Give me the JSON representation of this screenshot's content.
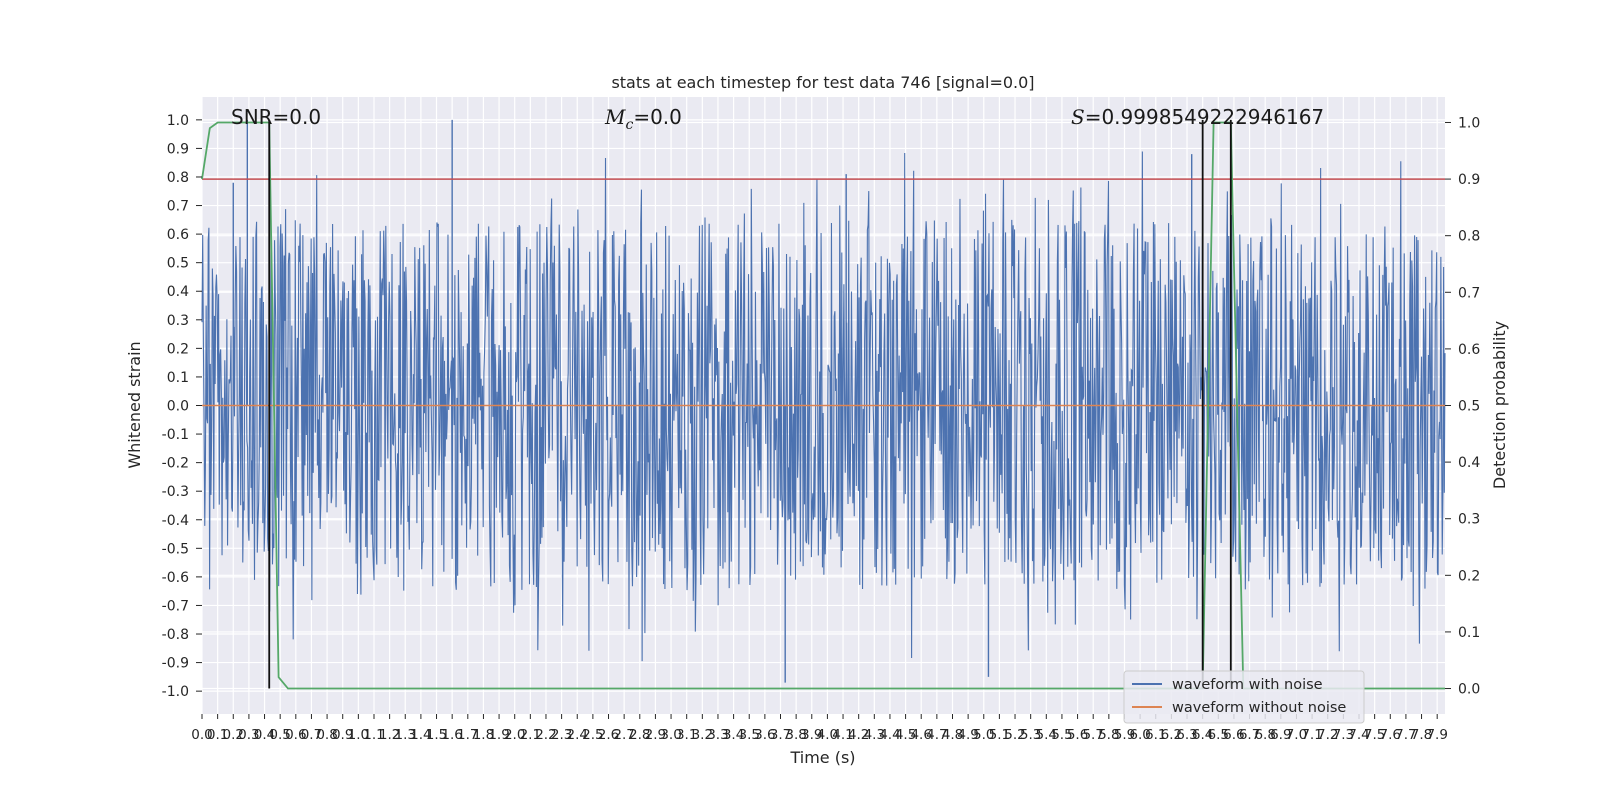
{
  "chart_data": {
    "type": "line",
    "title": "stats at each timestep for test data 746 [signal=0.0]",
    "xlabel": "Time (s)",
    "ylabel": "Whitened strain",
    "y2label": "Detection probability",
    "xlim": [
      0.0,
      7.95
    ],
    "ylim": [
      -1.08,
      1.08
    ],
    "y2lim": [
      -0.045,
      1.045
    ],
    "x_ticks": [
      "0.0",
      "0.1",
      "0.2",
      "0.3",
      "0.4",
      "0.5",
      "0.6",
      "0.7",
      "0.8",
      "0.9",
      "1.0",
      "1.1",
      "1.2",
      "1.3",
      "1.4",
      "1.5",
      "1.6",
      "1.7",
      "1.8",
      "1.9",
      "2.0",
      "2.1",
      "2.2",
      "2.3",
      "2.4",
      "2.5",
      "2.6",
      "2.7",
      "2.8",
      "2.9",
      "3.0",
      "3.1",
      "3.2",
      "3.3",
      "3.4",
      "3.5",
      "3.6",
      "3.7",
      "3.8",
      "3.9",
      "4.0",
      "4.1",
      "4.2",
      "4.3",
      "4.4",
      "4.5",
      "4.6",
      "4.7",
      "4.8",
      "4.9",
      "5.0",
      "5.1",
      "5.2",
      "5.3",
      "5.4",
      "5.5",
      "5.6",
      "5.7",
      "5.8",
      "5.9",
      "6.0",
      "6.1",
      "6.2",
      "6.3",
      "6.4",
      "6.5",
      "6.6",
      "6.7",
      "6.8",
      "6.9",
      "7.0",
      "7.1",
      "7.2",
      "7.3",
      "7.4",
      "7.5",
      "7.6",
      "7.7",
      "7.8",
      "7.9"
    ],
    "y_ticks": [
      "1.0",
      "0.9",
      "0.8",
      "0.7",
      "0.6",
      "0.5",
      "0.4",
      "0.3",
      "0.2",
      "0.1",
      "0.0",
      "-0.1",
      "-0.2",
      "-0.3",
      "-0.4",
      "-0.5",
      "-0.6",
      "-0.7",
      "-0.8",
      "-0.9",
      "-1.0"
    ],
    "y2_ticks": [
      "1.0",
      "0.9",
      "0.8",
      "0.7",
      "0.6",
      "0.5",
      "0.4",
      "0.3",
      "0.2",
      "0.1",
      "0.0"
    ],
    "annotations": {
      "snr": "SNR=0.0",
      "mc_symbol": "M",
      "mc_sub": "c",
      "mc_value": "=0.0",
      "s_symbol": "S",
      "s_value": "=0.9998549222946167"
    },
    "threshold_y2": 0.9,
    "vertical_lines_x": [
      0.43,
      6.4,
      6.58
    ],
    "series": [
      {
        "name": "waveform with noise",
        "color": "#4c72b0",
        "kind": "noise",
        "amplitude_typical": 0.55,
        "peak_max": 1.0,
        "peak_min": -0.97
      },
      {
        "name": "waveform without noise",
        "color": "#dd8452",
        "kind": "flat",
        "value": 0.0
      },
      {
        "color": "#55a868",
        "axis": "y2",
        "x": [
          0.0,
          0.05,
          0.1,
          0.43,
          0.49,
          0.55,
          6.35,
          6.4,
          6.47,
          6.58,
          6.66,
          6.72,
          7.95
        ],
        "values": [
          0.9,
          0.99,
          1.0,
          1.0,
          0.02,
          0.0,
          0.0,
          0.0,
          1.0,
          1.0,
          0.0,
          0.0,
          0.0
        ]
      }
    ],
    "legend_position": "lower-right",
    "grid": true
  }
}
